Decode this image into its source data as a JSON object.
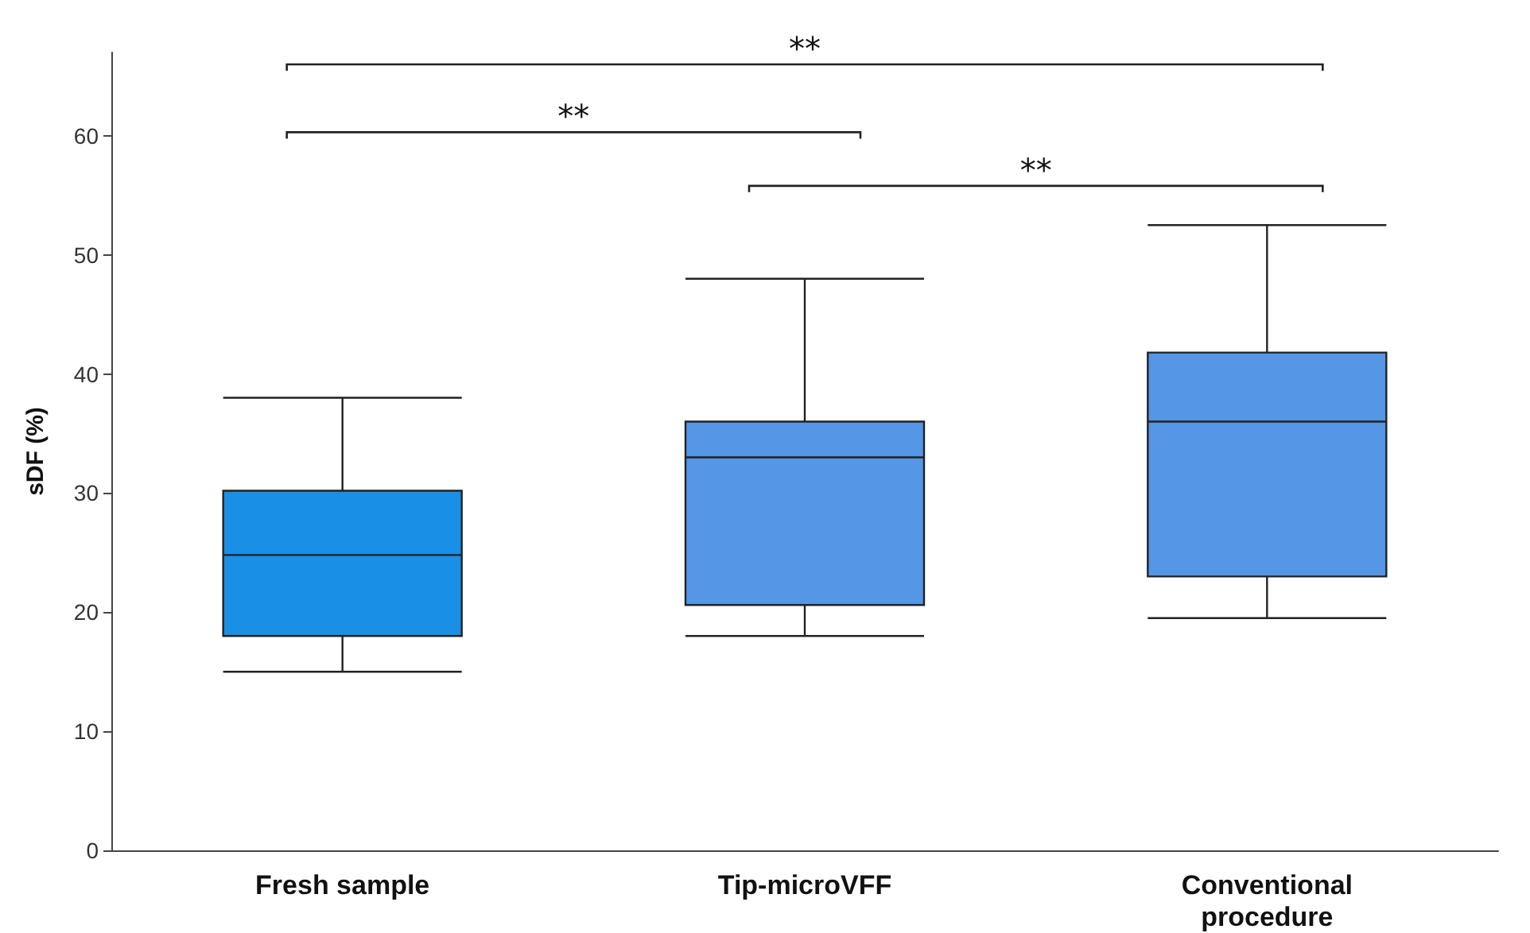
{
  "chart_data": {
    "type": "box",
    "ylabel": "sDF (%)",
    "categories": [
      "Fresh sample",
      "Tip-microVFF",
      "Conventional\nprocedure"
    ],
    "colors": [
      "#1a8fe6",
      "#5596e6",
      "#5596e6"
    ],
    "boxes": [
      {
        "low": 15,
        "q1": 18,
        "median": 24.8,
        "q3": 30.2,
        "high": 38
      },
      {
        "low": 18,
        "q1": 20.6,
        "median": 33,
        "q3": 36,
        "high": 48
      },
      {
        "low": 19.5,
        "q1": 23,
        "median": 36,
        "q3": 41.8,
        "high": 52.5
      }
    ],
    "ylim": [
      0,
      67
    ],
    "yticks": [
      0,
      10,
      20,
      30,
      40,
      50,
      60
    ],
    "grid": false,
    "annotations": [
      "**",
      "**",
      "**"
    ]
  }
}
